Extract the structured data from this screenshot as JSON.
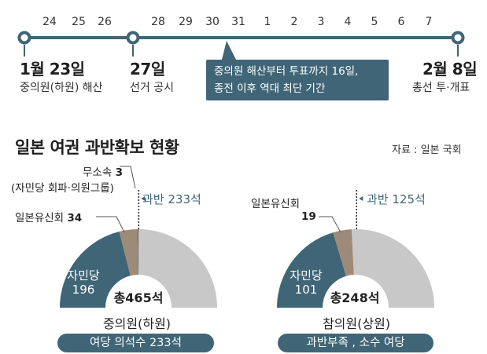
{
  "timeline": {
    "ticks": [
      "24",
      "25",
      "26",
      "28",
      "29",
      "30",
      "31",
      "1",
      "2",
      "3",
      "4",
      "5",
      "6",
      "7"
    ],
    "events": [
      {
        "date": "1월 23일",
        "label": "중의원(하원) 해산"
      },
      {
        "date": "27일",
        "label": "선거 공시"
      },
      {
        "date": "2월 8일",
        "label": "총선 투·개표"
      }
    ],
    "callout": [
      "중의원 해산부터 투표까지 16일,",
      "종전 이후 역대 최단 기간"
    ],
    "colors": {
      "line": "#3f6577",
      "node_fill": "#ffffff"
    }
  },
  "header": {
    "title": "일본 여권 과반확보 현황",
    "source": "자료 : 일본 국회"
  },
  "chart_data": [
    {
      "type": "pie",
      "subtype": "half-donut",
      "title": "중의원(하원)",
      "total_label": "총465석",
      "total": 465,
      "majority": 233,
      "majority_label": "과반 233석",
      "slices": [
        {
          "name": "자민당",
          "value": 196,
          "color": "#3f6577"
        },
        {
          "name": "일본유신회",
          "value": 34,
          "color": "#9e8a78"
        },
        {
          "name": "무소속",
          "value": 3,
          "color": "#6e6e6e"
        },
        {
          "name": "",
          "value": 232,
          "color": "#c8c8c8"
        }
      ],
      "labels": {
        "ldp_name": "자민당",
        "ldp_value": "196",
        "ishin_name": "일본유신회",
        "ishin_value": "34",
        "ind_name": "무소속",
        "ind_value": "3",
        "ind_note": "(자민당 회파·의원그룹)"
      },
      "status": "여당 의석수 233석"
    },
    {
      "type": "pie",
      "subtype": "half-donut",
      "title": "참의원(상원)",
      "total_label": "총248석",
      "total": 248,
      "majority": 125,
      "majority_label": "과반 125석",
      "slices": [
        {
          "name": "자민당",
          "value": 101,
          "color": "#3f6577"
        },
        {
          "name": "일본유신회",
          "value": 19,
          "color": "#9e8a78"
        },
        {
          "name": "",
          "value": 128,
          "color": "#c8c8c8"
        }
      ],
      "labels": {
        "ldp_name": "자민당",
        "ldp_value": "101",
        "ishin_name": "일본유신회",
        "ishin_value": "19"
      },
      "status": "과반부족 , 소수 여당"
    }
  ]
}
